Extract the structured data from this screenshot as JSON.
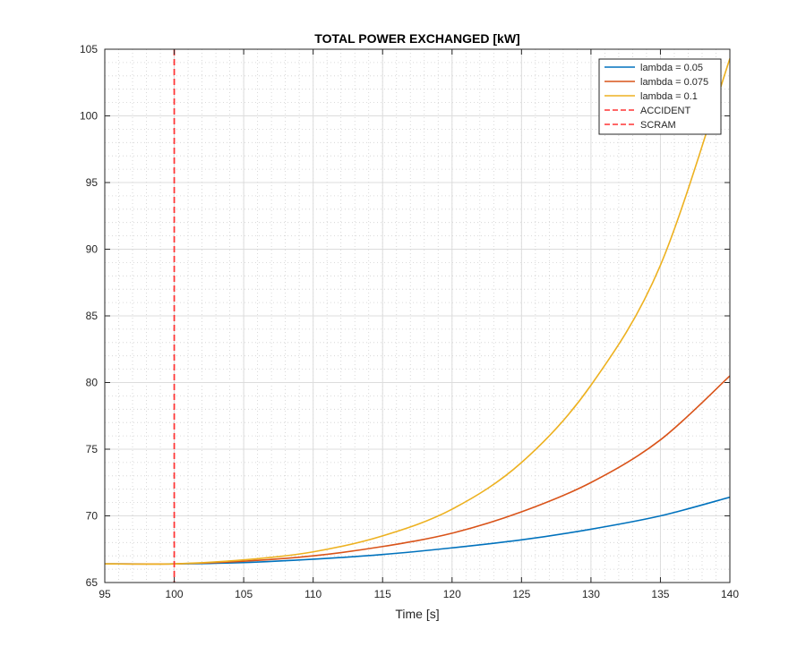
{
  "chart_data": {
    "type": "line",
    "title": "TOTAL POWER EXCHANGED [kW]",
    "xlabel": "Time [s]",
    "ylabel": "",
    "xlim": [
      95,
      140
    ],
    "ylim": [
      65,
      105
    ],
    "xticks": [
      95,
      100,
      105,
      110,
      115,
      120,
      125,
      130,
      135,
      140
    ],
    "yticks": [
      65,
      70,
      75,
      80,
      85,
      90,
      95,
      100,
      105
    ],
    "grid": true,
    "minor_grid": true,
    "legend_position": "top-right",
    "series": [
      {
        "name": "lambda = 0.05",
        "color": "#0072BD",
        "x": [
          95,
          100,
          105,
          110,
          115,
          120,
          125,
          130,
          135,
          140
        ],
        "values": [
          66.4,
          66.4,
          66.5,
          66.75,
          67.1,
          67.6,
          68.2,
          69.0,
          70.0,
          71.4
        ]
      },
      {
        "name": "lambda = 0.075",
        "color": "#D95319",
        "x": [
          95,
          100,
          105,
          110,
          115,
          120,
          125,
          130,
          135,
          140
        ],
        "values": [
          66.4,
          66.4,
          66.6,
          67.0,
          67.7,
          68.7,
          70.3,
          72.5,
          75.7,
          80.5
        ]
      },
      {
        "name": "lambda = 0.1",
        "color": "#EDB120",
        "x": [
          95,
          100,
          105,
          110,
          115,
          120,
          125,
          130,
          135,
          140
        ],
        "values": [
          66.4,
          66.4,
          66.7,
          67.3,
          68.5,
          70.5,
          74.0,
          79.8,
          88.8,
          104.3
        ]
      }
    ],
    "vlines": [
      {
        "name": "ACCIDENT",
        "x": 100,
        "color": "#FF3333",
        "style": "dashed"
      },
      {
        "name": "SCRAM",
        "x": 100,
        "color": "#FF3333",
        "style": "dashed"
      }
    ]
  }
}
